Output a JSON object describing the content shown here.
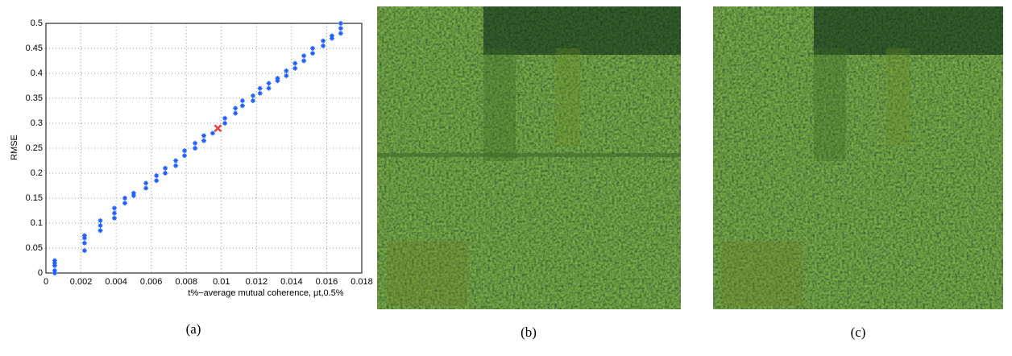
{
  "chart_data": {
    "type": "scatter",
    "xlabel": "t%−average mutual coherence, μt,0.5%",
    "ylabel": "RMSE",
    "xlim": [
      0,
      0.018
    ],
    "ylim": [
      0,
      0.5
    ],
    "xticks": [
      0,
      0.002,
      0.004,
      0.006,
      0.008,
      0.01,
      0.012,
      0.014,
      0.016,
      0.018
    ],
    "yticks": [
      0,
      0.05,
      0.1,
      0.15,
      0.2,
      0.25,
      0.3,
      0.35,
      0.4,
      0.45,
      0.5
    ],
    "grid": true,
    "series": [
      {
        "color": "#1f5fff",
        "marker": "*",
        "x": [
          0.0005,
          0.0005,
          0.0005,
          0.0005,
          0.0005,
          0.0022,
          0.0022,
          0.0022,
          0.0022,
          0.0031,
          0.0031,
          0.0031,
          0.0039,
          0.0039,
          0.0039,
          0.0045,
          0.0045,
          0.005,
          0.005,
          0.0057,
          0.0057,
          0.0063,
          0.0063,
          0.0068,
          0.0068,
          0.0074,
          0.0074,
          0.0079,
          0.0079,
          0.0085,
          0.0085,
          0.009,
          0.009,
          0.0095,
          0.0102,
          0.0102,
          0.0108,
          0.0108,
          0.0112,
          0.0112,
          0.0118,
          0.0118,
          0.0122,
          0.0122,
          0.0127,
          0.0127,
          0.0132,
          0.0132,
          0.0137,
          0.0137,
          0.0142,
          0.0142,
          0.0147,
          0.0147,
          0.0152,
          0.0152,
          0.0158,
          0.0158,
          0.0163,
          0.0163,
          0.0168,
          0.0168,
          0.0168
        ],
        "values": [
          0,
          0.005,
          0.015,
          0.02,
          0.025,
          0.045,
          0.06,
          0.07,
          0.075,
          0.085,
          0.095,
          0.105,
          0.11,
          0.12,
          0.13,
          0.14,
          0.15,
          0.155,
          0.16,
          0.17,
          0.18,
          0.185,
          0.195,
          0.2,
          0.21,
          0.215,
          0.225,
          0.235,
          0.245,
          0.25,
          0.26,
          0.265,
          0.275,
          0.28,
          0.3,
          0.31,
          0.32,
          0.33,
          0.335,
          0.345,
          0.345,
          0.355,
          0.36,
          0.37,
          0.37,
          0.38,
          0.385,
          0.39,
          0.395,
          0.405,
          0.41,
          0.42,
          0.425,
          0.435,
          0.44,
          0.45,
          0.455,
          0.465,
          0.47,
          0.475,
          0.48,
          0.49,
          0.5
        ]
      },
      {
        "color": "#f03c3c",
        "marker": "x",
        "x": [
          0.0098
        ],
        "values": [
          0.29
        ]
      }
    ]
  },
  "captions": [
    "(a)",
    "(b)",
    "(c)"
  ]
}
